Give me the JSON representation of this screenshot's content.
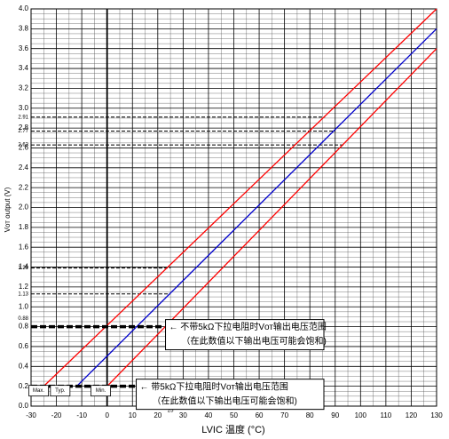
{
  "chart_data": {
    "type": "line",
    "x_label": "LVIC 温度 (°C)",
    "y_label": "Vот output (V)",
    "xlim": [
      -30,
      130
    ],
    "ylim": [
      0,
      4.0
    ],
    "xticks": [
      -30,
      -20,
      -10,
      0,
      10,
      20,
      30,
      40,
      50,
      60,
      70,
      80,
      90,
      100,
      110,
      120,
      130
    ],
    "yticks": [
      {
        "value": 0,
        "label": "0.0"
      },
      {
        "value": 0.2,
        "label": "0.2"
      },
      {
        "value": 0.4,
        "label": "0.4"
      },
      {
        "value": 0.6,
        "label": "0.6"
      },
      {
        "value": 0.8,
        "label": "0.8"
      },
      {
        "value": 1.0,
        "label": "1.0"
      },
      {
        "value": 1.2,
        "label": "1.2"
      },
      {
        "value": 1.4,
        "label": "1.4"
      },
      {
        "value": 1.6,
        "label": "1.6"
      },
      {
        "value": 1.8,
        "label": "1.8"
      },
      {
        "value": 2.0,
        "label": "2.0"
      },
      {
        "value": 2.2,
        "label": "2.2"
      },
      {
        "value": 2.4,
        "label": "2.4"
      },
      {
        "value": 2.6,
        "label": "2.6"
      },
      {
        "value": 2.8,
        "label": "2.8"
      },
      {
        "value": 3.0,
        "label": "3.0"
      },
      {
        "value": 3.2,
        "label": "3.2"
      },
      {
        "value": 3.4,
        "label": "3.4"
      },
      {
        "value": 3.6,
        "label": "3.6"
      },
      {
        "value": 3.8,
        "label": "3.8"
      },
      {
        "value": 4.0,
        "label": "4.0"
      }
    ],
    "grid": true,
    "series": [
      {
        "name": "Max.",
        "color": "#ff0000",
        "x": [
          -25,
          130
        ],
        "values": [
          0.2,
          4.0
        ]
      },
      {
        "name": "Typ.",
        "color": "#0000cc",
        "x": [
          -12,
          130
        ],
        "values": [
          0.2,
          3.8
        ]
      },
      {
        "name": "Min.",
        "color": "#ff0000",
        "x": [
          0,
          130
        ],
        "values": [
          0.2,
          3.6
        ]
      }
    ],
    "reference_lines": [
      {
        "value": 2.91,
        "label": "2.91",
        "x_end": 86
      },
      {
        "value": 2.77,
        "label": "2.77",
        "x_end": 90
      },
      {
        "value": 2.63,
        "label": "2.63",
        "x_end": 94
      },
      {
        "value": 1.39,
        "label": "1.39",
        "x_end": 25
      },
      {
        "value": 1.13,
        "label": "1.13",
        "x_end": 25
      }
    ],
    "marker_labels": [
      {
        "value": 0.88,
        "label": "0.88"
      }
    ],
    "x_marker": {
      "value": 25,
      "label": "25"
    },
    "limit_lines": [
      {
        "value": 0.8,
        "x_end": 22,
        "text": [
          "← 不带5kΩ下拉电阻时Vот输出电压范围",
          "（在此数值以下输出电压可能会饱和)"
        ]
      },
      {
        "value": 0.2,
        "x_end": 22,
        "text": [
          "← 带5kΩ下拉电阻时Vот输出电压范围",
          "（在此数值以下输出电压可能会饱和)"
        ]
      }
    ],
    "range_markers": [
      {
        "label": "Max.",
        "x": -27
      },
      {
        "label": "Typ.",
        "x": -18.5
      },
      {
        "label": "Min.",
        "x": -2.5
      }
    ]
  }
}
